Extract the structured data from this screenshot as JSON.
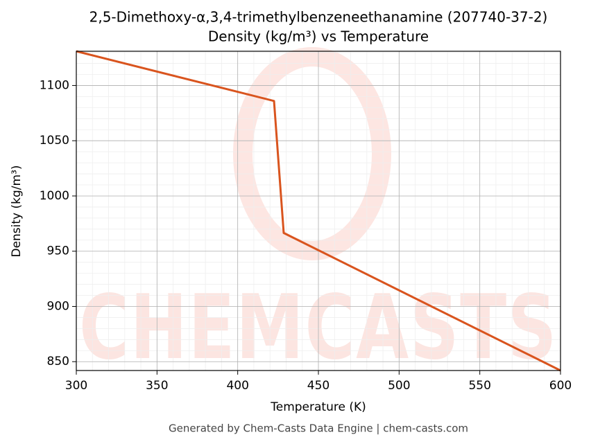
{
  "chart_data": {
    "type": "line",
    "title": "2,5-Dimethoxy-α,3,4-trimethylbenzeneethanamine (207740-37-2)",
    "subtitle": "Density (kg/m³) vs Temperature",
    "x_label": "Temperature (K)",
    "y_label": "Density (kg/m³)",
    "x": [
      300,
      422.5,
      428.5,
      600
    ],
    "series": [
      {
        "name": "Density",
        "color": "#d9541e",
        "values": [
          1131,
          1086,
          966.5,
          842
        ]
      }
    ],
    "xlim": [
      300,
      600
    ],
    "xticks": [
      300,
      350,
      400,
      450,
      500,
      550,
      600
    ],
    "ylim": [
      842,
      1131
    ],
    "yticks": [
      850,
      900,
      950,
      1000,
      1050,
      1100
    ],
    "grid": true,
    "minor_grid": true,
    "watermark": "CHEMCASTS",
    "footer": "Generated by Chem-Casts Data Engine | chem-casts.com"
  }
}
